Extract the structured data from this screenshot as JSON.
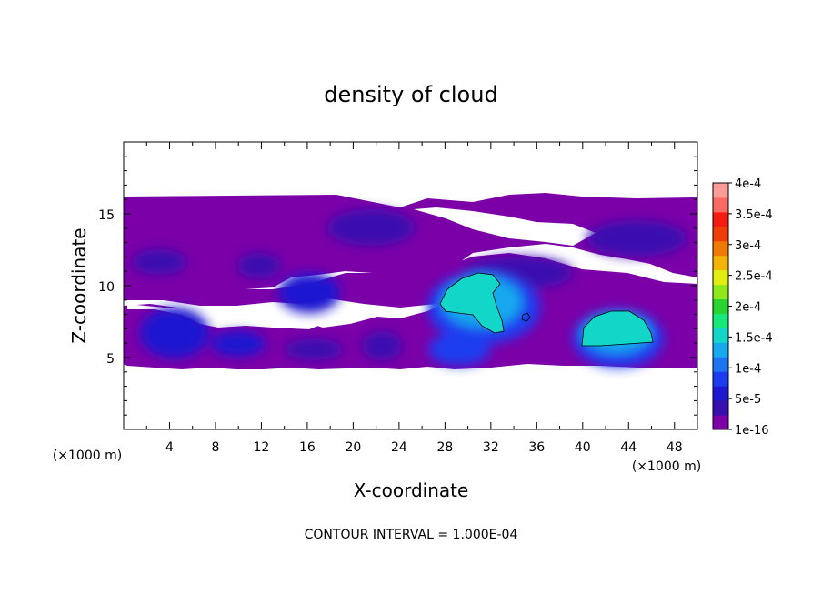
{
  "chart_data": {
    "type": "heatmap",
    "title": "density of cloud",
    "xlabel": "X-coordinate",
    "ylabel": "Z-coordinate",
    "x_unit_left": "(×1000 m)",
    "x_unit_right": "(×1000 m)",
    "footnote": "CONTOUR INTERVAL = 1.000E-04",
    "xlim": [
      0,
      50
    ],
    "ylim": [
      0,
      20
    ],
    "xticks": [
      4,
      8,
      12,
      16,
      20,
      24,
      28,
      32,
      36,
      40,
      44,
      48
    ],
    "xtick_labels": [
      "4",
      "8",
      "12",
      "16",
      "20",
      "24",
      "28",
      "32",
      "36",
      "40",
      "44",
      "48"
    ],
    "yticks": [
      5,
      10,
      15
    ],
    "ytick_labels": [
      "5",
      "10",
      "15"
    ],
    "colorbar": {
      "levels": [
        1e-16,
        5e-05,
        0.0001,
        0.00015,
        0.0002,
        0.00025,
        0.0003,
        0.00035,
        0.0004
      ],
      "labels": [
        "1e-16",
        "5e-5",
        "1e-4",
        "1.5e-4",
        "2e-4",
        "2.5e-4",
        "3e-4",
        "3.5e-4",
        "4e-4"
      ],
      "colors": [
        "#7b00a8",
        "#3a0fb0",
        "#1f18d0",
        "#1c3cf0",
        "#1e74f0",
        "#18a8ee",
        "#12d6c8",
        "#16e87a",
        "#2ad430",
        "#8ee81c",
        "#e0ee12",
        "#f2b406",
        "#f07a04",
        "#f03c06",
        "#f41c10",
        "#fa6a64",
        "#fc9c98"
      ]
    },
    "contour_levels": [
      0.0001
    ],
    "regions": [
      {
        "name": "upper cloud band",
        "x_range": [
          0,
          50
        ],
        "z_range": [
          10.5,
          16
        ],
        "min": 1e-16,
        "max": 5e-05
      },
      {
        "name": "lower cloud band",
        "x_range": [
          0,
          50
        ],
        "z_range": [
          4.5,
          8.5
        ],
        "min": 1e-16,
        "max": 5e-05
      },
      {
        "name": "core near x=30",
        "center": [
          30.5,
          9.5
        ],
        "max": 0.00015
      },
      {
        "name": "core near x=43",
        "center": [
          42.5,
          7.2
        ],
        "max": 0.00015
      },
      {
        "name": "blob near x=4",
        "center": [
          4.5,
          6.5
        ],
        "max": 6e-05
      },
      {
        "name": "blob near x=10",
        "center": [
          10,
          5.8
        ],
        "max": 5e-05
      },
      {
        "name": "blob near x=29",
        "center": [
          29,
          5.5
        ],
        "max": 6e-05
      },
      {
        "name": "blob near x=16",
        "center": [
          16,
          9.5
        ],
        "max": 5e-05
      },
      {
        "name": "upper blob near x=21",
        "center": [
          21.5,
          14
        ],
        "max": 4e-05
      },
      {
        "name": "upper blob near x=48",
        "center": [
          48,
          13
        ],
        "max": 4e-05
      }
    ]
  }
}
